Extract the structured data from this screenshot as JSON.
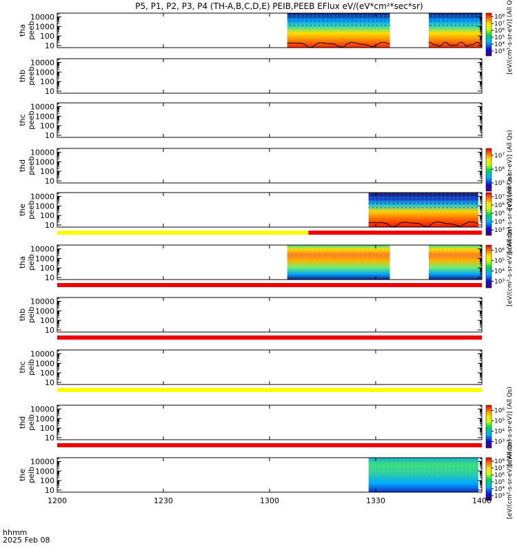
{
  "title": "P5, P1, P2, P3, P4 (TH-A,B,C,D,E) PEIB,PEEB EFlux eV/(eV*cm²*sec*sr)",
  "footer": {
    "label1": "hhmm",
    "label2": "2025 Feb 08"
  },
  "chart_data": {
    "type": "heatmap",
    "x_ticks": [
      "1200",
      "1230",
      "1300",
      "1330",
      "1400"
    ],
    "x_range": [
      "12:00",
      "14:00"
    ],
    "y_ticks": [
      "10",
      "100",
      "1000",
      "10000"
    ],
    "y_scale": "log",
    "panels": [
      {
        "name": "tha peeb",
        "ylabel": [
          "tha",
          "peeb"
        ],
        "spectra": [
          [
            "13:05",
            "13:34"
          ],
          [
            "13:45",
            "14:00"
          ]
        ],
        "style": "electron",
        "trace": true,
        "colorbar": true
      },
      {
        "name": "thb peeb",
        "ylabel": [
          "thb",
          "peeb"
        ],
        "spectra": [],
        "style": "none",
        "colorbar": false
      },
      {
        "name": "thc peeb",
        "ylabel": [
          "thc",
          "peeb"
        ],
        "spectra": [],
        "style": "none",
        "colorbar": false
      },
      {
        "name": "thd peeb",
        "ylabel": [
          "thd",
          "peeb"
        ],
        "spectra": [],
        "style": "none",
        "colorbar": true
      },
      {
        "name": "the peeb",
        "ylabel": [
          "the",
          "peeb"
        ],
        "spectra": [
          [
            "13:28",
            "13:59"
          ]
        ],
        "style": "electron2",
        "trace": true,
        "colorbar": true
      },
      {
        "name": "tha peib",
        "ylabel": [
          "tha",
          "peib"
        ],
        "spectra": [
          [
            "13:05",
            "13:34"
          ],
          [
            "13:45",
            "14:00"
          ]
        ],
        "style": "ion",
        "colorbar": true
      },
      {
        "name": "thb peib",
        "ylabel": [
          "thb",
          "peib"
        ],
        "spectra": [],
        "style": "none",
        "colorbar": false
      },
      {
        "name": "thc peib",
        "ylabel": [
          "thc",
          "peib"
        ],
        "spectra": [],
        "style": "none",
        "colorbar": false
      },
      {
        "name": "thd peib",
        "ylabel": [
          "thd",
          "peib"
        ],
        "spectra": [],
        "style": "none",
        "colorbar": true
      },
      {
        "name": "the peib",
        "ylabel": [
          "the",
          "peib"
        ],
        "spectra": [
          [
            "13:28",
            "13:59"
          ]
        ],
        "style": "ion2",
        "colorbar": true
      }
    ],
    "status_bars": [
      {
        "after_panel": 4,
        "segments": [
          {
            "from": "12:00",
            "to": "13:11",
            "color": "#ffff00"
          },
          {
            "from": "13:11",
            "to": "14:00",
            "color": "#ee0000"
          }
        ]
      },
      {
        "after_panel": 5,
        "segments": [
          {
            "from": "12:00",
            "to": "14:00",
            "color": "#ee0000"
          }
        ]
      },
      {
        "after_panel": 6,
        "segments": [
          {
            "from": "12:00",
            "to": "14:00",
            "color": "#ee0000"
          }
        ]
      },
      {
        "after_panel": 7,
        "segments": [
          {
            "from": "12:00",
            "to": "14:00",
            "color": "#ffff00"
          }
        ]
      },
      {
        "after_panel": 8,
        "segments": [
          {
            "from": "12:00",
            "to": "14:00",
            "color": "#ee0000"
          }
        ]
      }
    ],
    "colorbars": [
      {
        "panel": 0,
        "ticks": [
          "10³",
          "10⁴",
          "10⁵",
          "10⁶",
          "10⁷",
          "10⁸"
        ],
        "label": "[eV/(cm²-s-sr-eV)] (All Qs)"
      },
      {
        "panel": 3,
        "ticks": [
          "10⁵",
          "10⁶",
          "10⁷"
        ],
        "label": "[eV/(cm²-s-sr-eV)] (All Qs)"
      },
      {
        "panel": 4,
        "ticks": [
          "10³",
          "10⁴",
          "10⁵",
          "10⁶",
          "10⁷"
        ],
        "label": "[eV/(cm²-s-sr-eV)] (All Qs)"
      },
      {
        "panel": 5,
        "ticks": [
          "10³",
          "10⁴",
          "10⁵",
          "10⁶"
        ],
        "label": "[eV/(cm²-s-sr-eV)] (All Qs)"
      },
      {
        "panel": 8,
        "ticks": [
          "10³",
          "10⁴",
          "10⁵",
          "10⁶"
        ],
        "label": "[eV/(cm²-s-sr-eV)] (All Qs)"
      },
      {
        "panel": 9,
        "ticks": [
          "10³",
          "10⁴",
          "10⁵",
          "10⁶",
          "10⁷",
          "10⁸"
        ],
        "label": "[eV/(cm²-s-sr-eV)] (All Qs)"
      }
    ]
  }
}
